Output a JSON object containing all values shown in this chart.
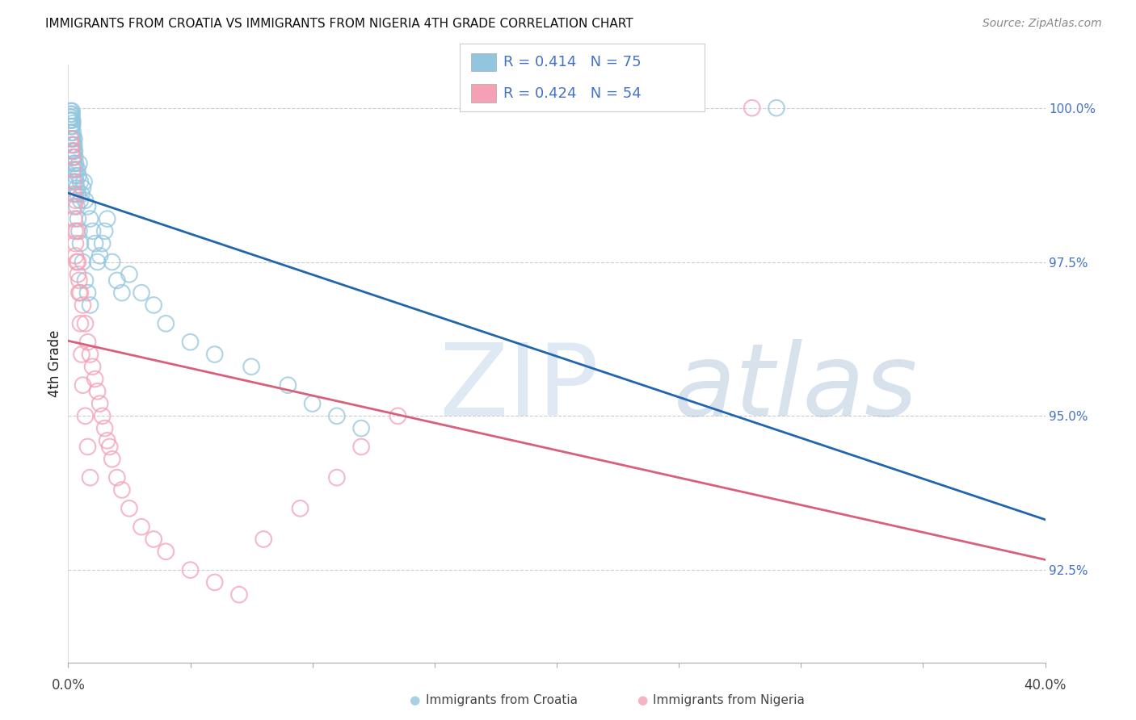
{
  "title": "IMMIGRANTS FROM CROATIA VS IMMIGRANTS FROM NIGERIA 4TH GRADE CORRELATION CHART",
  "source": "Source: ZipAtlas.com",
  "ylabel": "4th Grade",
  "ytick_labels": [
    "92.5%",
    "95.0%",
    "97.5%",
    "100.0%"
  ],
  "ytick_vals": [
    92.5,
    95.0,
    97.5,
    100.0
  ],
  "y_min": 91.0,
  "y_max": 100.7,
  "x_min": 0.0,
  "x_max": 40.0,
  "legend_blue_R": "0.414",
  "legend_blue_N": "75",
  "legend_pink_R": "0.424",
  "legend_pink_N": "54",
  "blue_color": "#92c5de",
  "pink_color": "#f4a0b5",
  "blue_line_color": "#2166ac",
  "pink_line_color": "#d9607a",
  "legend_text_color": "#4472c4",
  "right_axis_color": "#4472c4",
  "watermark_color": "#c8d8ea",
  "bottom_label_blue": "Immigrants from Croatia",
  "bottom_label_pink": "Immigrants from Nigeria",
  "blue_scatter_x": [
    0.05,
    0.08,
    0.1,
    0.1,
    0.12,
    0.12,
    0.13,
    0.14,
    0.15,
    0.15,
    0.16,
    0.17,
    0.18,
    0.18,
    0.2,
    0.2,
    0.2,
    0.22,
    0.22,
    0.23,
    0.25,
    0.25,
    0.27,
    0.28,
    0.3,
    0.3,
    0.3,
    0.32,
    0.35,
    0.38,
    0.4,
    0.42,
    0.45,
    0.5,
    0.5,
    0.55,
    0.6,
    0.65,
    0.7,
    0.8,
    0.9,
    1.0,
    1.1,
    1.2,
    1.3,
    1.4,
    1.5,
    1.6,
    1.8,
    2.0,
    2.2,
    2.5,
    3.0,
    3.5,
    4.0,
    5.0,
    6.0,
    7.5,
    9.0,
    10.0,
    11.0,
    12.0,
    0.15,
    0.2,
    0.25,
    0.3,
    0.35,
    0.4,
    0.45,
    0.5,
    0.6,
    0.7,
    0.8,
    0.9,
    29.0
  ],
  "blue_scatter_y": [
    99.8,
    99.85,
    99.9,
    99.95,
    99.7,
    99.8,
    99.6,
    99.5,
    99.9,
    99.85,
    99.95,
    99.7,
    99.8,
    99.75,
    99.6,
    99.5,
    99.4,
    99.3,
    99.2,
    99.1,
    99.5,
    99.4,
    99.3,
    99.2,
    99.1,
    99.0,
    98.9,
    98.8,
    98.7,
    99.0,
    98.6,
    98.9,
    99.1,
    98.8,
    98.5,
    98.6,
    98.7,
    98.8,
    98.5,
    98.4,
    98.2,
    98.0,
    97.8,
    97.5,
    97.6,
    97.8,
    98.0,
    98.2,
    97.5,
    97.2,
    97.0,
    97.3,
    97.0,
    96.8,
    96.5,
    96.2,
    96.0,
    95.8,
    95.5,
    95.2,
    95.0,
    94.8,
    99.3,
    99.0,
    98.8,
    98.6,
    98.4,
    98.2,
    98.0,
    97.8,
    97.5,
    97.2,
    97.0,
    96.8,
    100.0
  ],
  "pink_scatter_x": [
    0.1,
    0.12,
    0.15,
    0.18,
    0.2,
    0.2,
    0.22,
    0.25,
    0.25,
    0.28,
    0.3,
    0.3,
    0.35,
    0.4,
    0.45,
    0.5,
    0.6,
    0.7,
    0.8,
    0.9,
    1.0,
    1.1,
    1.2,
    1.3,
    1.4,
    1.5,
    1.6,
    1.7,
    1.8,
    2.0,
    2.2,
    2.5,
    3.0,
    3.5,
    4.0,
    5.0,
    6.0,
    7.0,
    8.0,
    9.5,
    11.0,
    12.0,
    13.5,
    0.3,
    0.35,
    0.4,
    0.45,
    0.5,
    0.55,
    0.6,
    0.7,
    0.8,
    0.9,
    28.0
  ],
  "pink_scatter_y": [
    99.5,
    99.4,
    99.3,
    99.2,
    99.0,
    98.8,
    98.6,
    98.4,
    98.2,
    98.0,
    97.8,
    97.6,
    97.5,
    97.3,
    97.2,
    97.0,
    96.8,
    96.5,
    96.2,
    96.0,
    95.8,
    95.6,
    95.4,
    95.2,
    95.0,
    94.8,
    94.6,
    94.5,
    94.3,
    94.0,
    93.8,
    93.5,
    93.2,
    93.0,
    92.8,
    92.5,
    92.3,
    92.1,
    93.0,
    93.5,
    94.0,
    94.5,
    95.0,
    98.5,
    98.0,
    97.5,
    97.0,
    96.5,
    96.0,
    95.5,
    95.0,
    94.5,
    94.0,
    100.0
  ]
}
